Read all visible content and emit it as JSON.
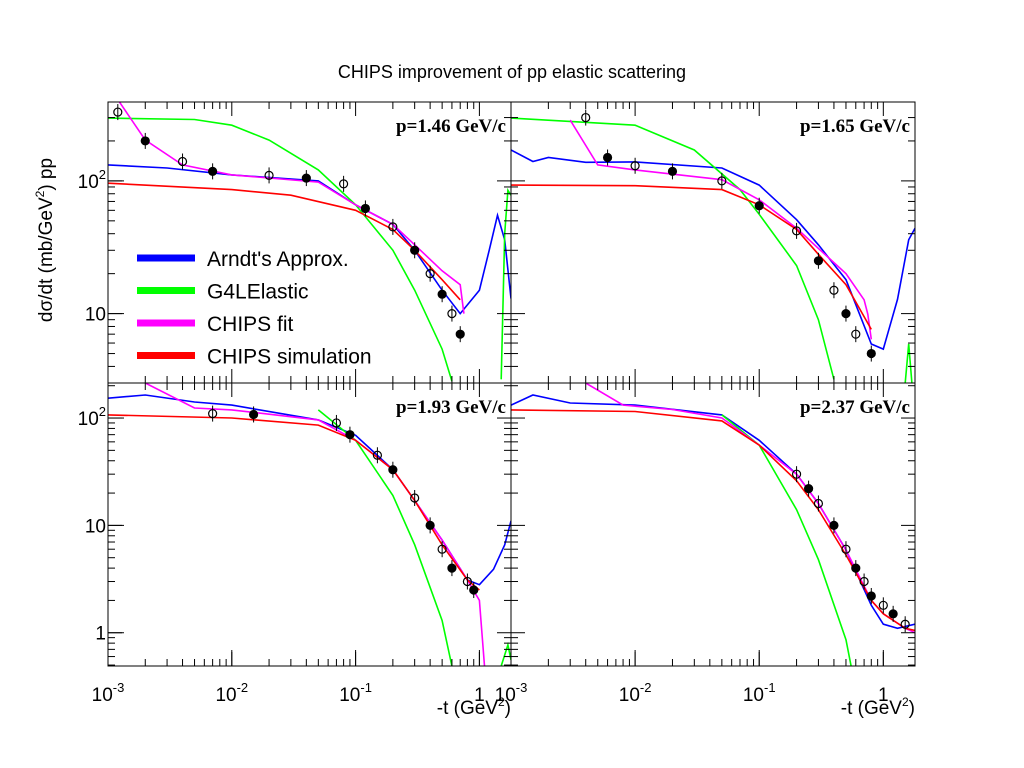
{
  "title": "CHIPS improvement of pp elastic scattering",
  "y_label": {
    "text": "dσ/dt (mb/GeV",
    "exponent": "2",
    "tail": ") pp"
  },
  "chart_data": [
    {
      "type": "line",
      "annotation": "p=1.46 GeV/c",
      "log_x": true,
      "log_y": true,
      "legend": "center left",
      "xlim": [
        0.001,
        1.8
      ],
      "ylim": [
        3.0,
        393
      ],
      "yticks": [
        {
          "value": 100,
          "label": "10",
          "exponent": "2"
        },
        10
      ],
      "series": [
        {
          "name": "Arndt's Approx.",
          "color": "#0000ff",
          "x": [
            0.001,
            0.003,
            0.01,
            0.05,
            0.1,
            0.2,
            0.3,
            0.5,
            0.7,
            1,
            1.2,
            1.4,
            1.6,
            1.8
          ],
          "values": [
            132,
            125,
            111,
            100,
            66,
            47,
            30,
            15,
            10,
            15,
            30,
            55,
            36,
            13
          ]
        },
        {
          "name": "G4LElastic",
          "color": "#00ff00",
          "x": [
            0.001,
            0.005,
            0.01,
            0.02,
            0.05,
            0.1,
            0.2,
            0.3,
            0.5,
            0.6,
            0.7,
            1.5,
            1.6,
            1.7,
            1.8
          ],
          "values": [
            297,
            290,
            263,
            203,
            121,
            66,
            30,
            15,
            5.4,
            3.1,
            null,
            3.2,
            40,
            85,
            78
          ]
        },
        {
          "name": "CHIPS fit",
          "color": "#ff00ff",
          "x": [
            0.001,
            0.002,
            0.004,
            0.01,
            0.05,
            0.1,
            0.2,
            0.3,
            0.5,
            0.7,
            0.75
          ],
          "values": [
            527,
            203,
            132,
            111,
            98,
            66,
            47,
            33,
            21,
            16.5,
            10
          ]
        },
        {
          "name": "CHIPS simulation",
          "color": "#ff0000",
          "x": [
            0.001,
            0.01,
            0.03,
            0.1,
            0.2,
            0.3,
            0.5,
            0.7
          ],
          "values": [
            96,
            86,
            78,
            60,
            43,
            30,
            18,
            12.7
          ]
        }
      ],
      "points": {
        "x": [
          0.0012,
          0.002,
          0.004,
          0.007,
          0.02,
          0.04,
          0.08,
          0.12,
          0.2,
          0.3,
          0.4,
          0.5,
          0.6,
          0.7
        ],
        "values": [
          330,
          200,
          140,
          118,
          110,
          105,
          95,
          62,
          45,
          30,
          20,
          14,
          10,
          7
        ]
      }
    },
    {
      "type": "line",
      "annotation": "p=1.65 GeV/c",
      "log_x": true,
      "log_y": true,
      "xlim": [
        0.001,
        1.8
      ],
      "ylim": [
        3.0,
        393
      ],
      "series": [
        {
          "name": "Arndt's Approx.",
          "color": "#0000ff",
          "x": [
            0.001,
            0.0015,
            0.002,
            0.004,
            0.01,
            0.05,
            0.1,
            0.2,
            0.3,
            0.5,
            0.8,
            1,
            1.3,
            1.6,
            1.8
          ],
          "values": [
            171,
            140,
            150,
            138,
            139,
            125,
            93,
            51,
            33,
            18,
            5.9,
            5.4,
            12.8,
            36,
            44
          ]
        },
        {
          "name": "G4LElastic",
          "color": "#00ff00",
          "x": [
            0.001,
            0.01,
            0.03,
            0.07,
            0.1,
            0.2,
            0.3,
            0.4,
            0.5,
            1.5,
            1.6,
            1.7
          ],
          "values": [
            297,
            263,
            171,
            86,
            56,
            23,
            9,
            3.2,
            null,
            3.0,
            5.9,
            3.0
          ]
        },
        {
          "name": "CHIPS fit",
          "color": "#ff00ff",
          "x": [
            0.003,
            0.005,
            0.01,
            0.05,
            0.1,
            0.2,
            0.3,
            0.5,
            0.7,
            0.75,
            0.8
          ],
          "values": [
            287,
            132,
            121,
            102,
            72,
            44,
            31,
            20,
            12.7,
            9.9,
            6.4
          ]
        },
        {
          "name": "CHIPS simulation",
          "color": "#ff0000",
          "x": [
            0.001,
            0.01,
            0.05,
            0.1,
            0.2,
            0.3,
            0.5,
            0.8
          ],
          "values": [
            93,
            92,
            86,
            66,
            43,
            28,
            16.5,
            7.6
          ]
        }
      ],
      "points": {
        "x": [
          0.004,
          0.006,
          0.01,
          0.02,
          0.05,
          0.1,
          0.2,
          0.3,
          0.4,
          0.5,
          0.6,
          0.8
        ],
        "values": [
          300,
          150,
          130,
          118,
          100,
          65,
          42,
          25,
          15,
          10,
          7,
          5
        ]
      }
    },
    {
      "type": "line",
      "annotation": "p=1.93 GeV/c",
      "log_x": true,
      "log_y": true,
      "xlim": [
        0.001,
        1.8
      ],
      "ylim": [
        0.49,
        212
      ],
      "xticks": [
        {
          "value": 0.001,
          "label": "10",
          "exponent": "-3"
        },
        {
          "value": 0.01,
          "label": "10",
          "exponent": "-2"
        },
        {
          "value": 0.1,
          "label": "10",
          "exponent": "-1"
        },
        1
      ],
      "yticks": [
        {
          "value": 100,
          "label": "10",
          "exponent": "2"
        },
        10,
        1
      ],
      "x_label": {
        "text": "-t (GeV",
        "exponent": "2",
        "tail": ")"
      },
      "series": [
        {
          "name": "Arndt's Approx.",
          "color": "#0000ff",
          "x": [
            0.001,
            0.002,
            0.005,
            0.01,
            0.05,
            0.1,
            0.2,
            0.3,
            0.5,
            0.8,
            1,
            1.3,
            1.6,
            1.8
          ],
          "values": [
            153,
            164,
            141,
            132,
            96,
            69,
            33,
            17,
            7.3,
            3.1,
            2.8,
            3.9,
            6.6,
            11
          ]
        },
        {
          "name": "G4LElastic",
          "color": "#00ff00",
          "x": [
            0.05,
            0.1,
            0.2,
            0.3,
            0.5,
            0.6,
            1,
            1.5,
            1.7,
            1.8
          ],
          "values": [
            119,
            62,
            19,
            6.6,
            1.3,
            0.49,
            null,
            0.49,
            0.77,
            0.56
          ]
        },
        {
          "name": "CHIPS fit",
          "color": "#ff00ff",
          "x": [
            0.002,
            0.005,
            0.01,
            0.05,
            0.1,
            0.2,
            0.3,
            0.5,
            0.8,
            1,
            1.1
          ],
          "values": [
            212,
            124,
            119,
            96,
            62,
            33,
            17,
            7.3,
            3.1,
            2.0,
            0.49
          ]
        },
        {
          "name": "CHIPS simulation",
          "color": "#ff0000",
          "x": [
            0.001,
            0.01,
            0.05,
            0.1,
            0.2,
            0.3,
            0.5,
            0.8,
            1
          ],
          "values": [
            107,
            100,
            86,
            62,
            33,
            17,
            6.6,
            3.1,
            2.5
          ]
        }
      ],
      "points": {
        "x": [
          0.007,
          0.015,
          0.07,
          0.09,
          0.15,
          0.2,
          0.3,
          0.4,
          0.5,
          0.6,
          0.8,
          0.9
        ],
        "values": [
          110,
          108,
          90,
          70,
          45,
          33,
          18,
          10,
          6,
          4,
          3,
          2.5
        ]
      }
    },
    {
      "type": "line",
      "annotation": "p=2.37 GeV/c",
      "log_x": true,
      "log_y": true,
      "xlim": [
        0.001,
        1.8
      ],
      "ylim": [
        0.49,
        212
      ],
      "xticks": [
        {
          "value": 0.001,
          "label": "10",
          "exponent": "-3"
        },
        {
          "value": 0.01,
          "label": "10",
          "exponent": "-2"
        },
        {
          "value": 0.1,
          "label": "10",
          "exponent": "-1"
        },
        1
      ],
      "x_label": {
        "text": "-t (GeV",
        "exponent": "2",
        "tail": ")"
      },
      "series": [
        {
          "name": "Arndt's Approx.",
          "color": "#0000ff",
          "x": [
            0.001,
            0.0015,
            0.003,
            0.01,
            0.05,
            0.1,
            0.2,
            0.3,
            0.5,
            0.8,
            1,
            1.3,
            1.8
          ],
          "values": [
            132,
            164,
            138,
            132,
            107,
            62,
            30,
            16,
            5.9,
            1.8,
            1.2,
            1.1,
            1.2
          ]
        },
        {
          "name": "G4LElastic",
          "color": "#00ff00",
          "x": [
            0.05,
            0.1,
            0.2,
            0.3,
            0.5,
            0.55
          ],
          "values": [
            107,
            56,
            14,
            4.8,
            0.86,
            0.49
          ]
        },
        {
          "name": "CHIPS fit",
          "color": "#ff00ff",
          "x": [
            0.004,
            0.008,
            0.02,
            0.05,
            0.1,
            0.2,
            0.3,
            0.5,
            0.8,
            1,
            1.5,
            1.8
          ],
          "values": [
            212,
            132,
            120,
            100,
            56,
            30,
            16,
            5.9,
            2.0,
            1.5,
            1.1,
            1.0
          ]
        },
        {
          "name": "CHIPS simulation",
          "color": "#ff0000",
          "x": [
            0.001,
            0.01,
            0.05,
            0.1,
            0.2,
            0.3,
            0.5,
            0.8,
            1,
            1.5,
            1.8
          ],
          "values": [
            119,
            115,
            94,
            56,
            26,
            14,
            5.3,
            2.0,
            1.5,
            1.1,
            1.05
          ]
        }
      ],
      "points": {
        "x": [
          0.2,
          0.25,
          0.3,
          0.4,
          0.5,
          0.6,
          0.7,
          0.8,
          1,
          1.2,
          1.5
        ],
        "values": [
          30,
          22,
          16,
          10,
          6,
          4,
          3,
          2.2,
          1.8,
          1.5,
          1.2
        ]
      }
    }
  ]
}
